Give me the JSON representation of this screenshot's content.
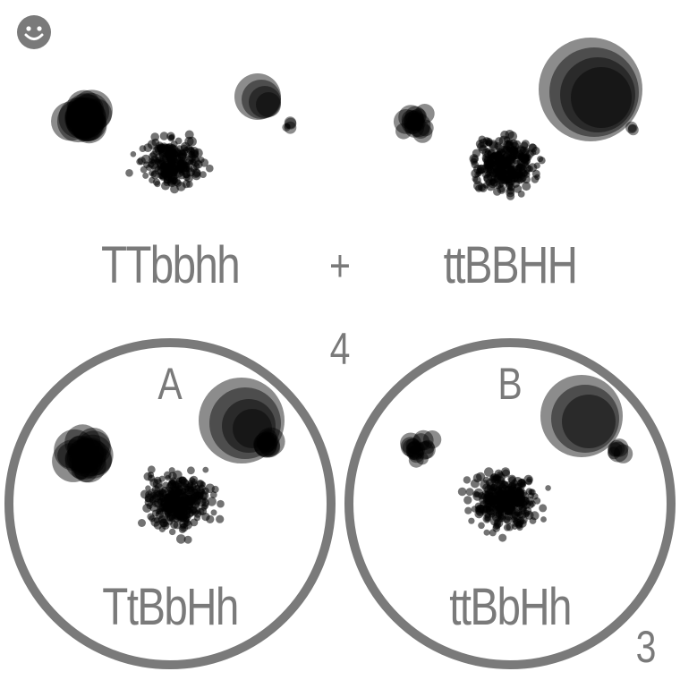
{
  "icons": {
    "corner": "smiley-face-icon"
  },
  "parents": {
    "left": {
      "genotype": "TTbbhh"
    },
    "operator": "+",
    "right": {
      "genotype": "ttBBHH"
    }
  },
  "count_label": "4",
  "offspring": [
    {
      "letter": "A",
      "genotype": "TtBbHh"
    },
    {
      "letter": "B",
      "genotype": "ttBbHh"
    }
  ],
  "count_label_bottom": "3",
  "colors": {
    "label": "#7a7a7a",
    "ring": "#7a7a7a",
    "dot": "#000000"
  }
}
